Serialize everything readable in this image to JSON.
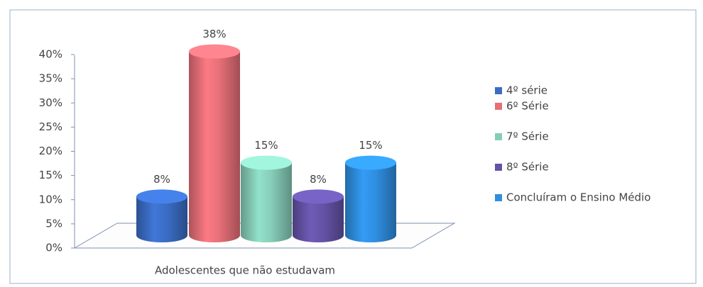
{
  "chart_data": {
    "type": "bar",
    "categories": [
      "Adolescentes que não estudavam"
    ],
    "series": [
      {
        "name": "4º série",
        "color": "#3a6cc4",
        "values": [
          8
        ],
        "value_labels": [
          "8%"
        ]
      },
      {
        "name": "6º Série",
        "color": "#e66f78",
        "values": [
          38
        ],
        "value_labels": [
          "38%"
        ]
      },
      {
        "name": "7º Série",
        "color": "#86cdb8",
        "values": [
          15
        ],
        "value_labels": [
          "15%"
        ]
      },
      {
        "name": "8º Série",
        "color": "#6453a6",
        "values": [
          8
        ],
        "value_labels": [
          "8%"
        ]
      },
      {
        "name": "Concluíram o Ensino Médio",
        "color": "#2f8ee0",
        "values": [
          15
        ],
        "value_labels": [
          "15%"
        ]
      }
    ],
    "ylim": [
      0,
      40
    ],
    "yticks": [
      {
        "value": 0,
        "label": "0%"
      },
      {
        "value": 5,
        "label": "5%"
      },
      {
        "value": 10,
        "label": "10%"
      },
      {
        "value": 15,
        "label": "15%"
      },
      {
        "value": 20,
        "label": "20%"
      },
      {
        "value": 25,
        "label": "25%"
      },
      {
        "value": 30,
        "label": "30%"
      },
      {
        "value": 35,
        "label": "35%"
      },
      {
        "value": 40,
        "label": "40%"
      }
    ],
    "legend": "right"
  }
}
